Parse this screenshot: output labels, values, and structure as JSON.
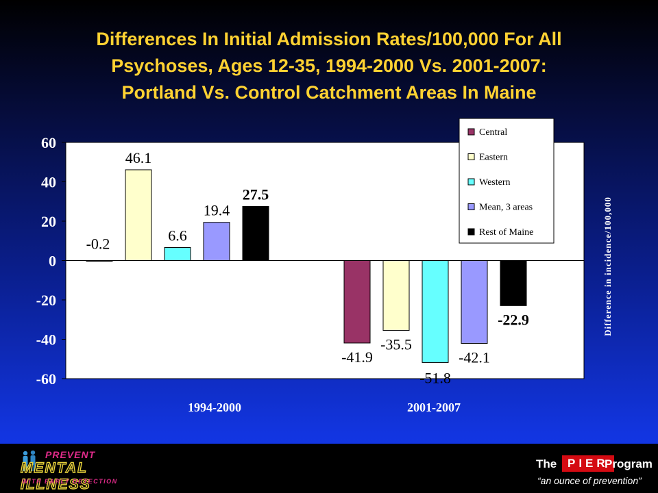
{
  "title": {
    "lines": [
      "Differences In Initial Admission Rates/100,000 For All",
      "Psychoses, Ages 12-35, 1994-2000 Vs. 2001-2007:",
      "Portland Vs. Control Catchment Areas In Maine"
    ]
  },
  "chart_data": {
    "type": "bar",
    "categories": [
      "1994-2000",
      "2001-2007"
    ],
    "series": [
      {
        "name": "Central",
        "values": [
          -0.2,
          -41.9
        ],
        "labels": [
          "-0.2",
          "-41.9"
        ],
        "color": "#993366",
        "bold": false
      },
      {
        "name": "Eastern",
        "values": [
          46.1,
          -35.5
        ],
        "labels": [
          "46.1",
          "-35.5"
        ],
        "color": "#ffffcc",
        "bold": false
      },
      {
        "name": "Western",
        "values": [
          6.6,
          -51.8
        ],
        "labels": [
          "6.6",
          "-51.8"
        ],
        "color": "#66ffff",
        "bold": false
      },
      {
        "name": "Mean, 3 areas",
        "values": [
          19.4,
          -42.1
        ],
        "labels": [
          "19.4",
          "-42.1"
        ],
        "color": "#9999ff",
        "bold": false
      },
      {
        "name": "Rest of Maine",
        "values": [
          27.5,
          -22.9
        ],
        "labels": [
          "27.5",
          "-22.9"
        ],
        "color": "#000000",
        "bold": true
      }
    ],
    "ylabel": "Difference in incidence/100,000",
    "ylim": [
      -60,
      60
    ],
    "yticks": [
      60,
      40,
      20,
      0,
      -20,
      -40,
      -60
    ],
    "ytick_labels": [
      "60",
      "40",
      "20",
      "0",
      "-20",
      "-40",
      "-60"
    ],
    "grid": false,
    "legend": "top-right",
    "colors": {
      "plot_bg": "#ffffff",
      "axis_text": "#ffffff",
      "label_text": "#000000"
    }
  },
  "footer": {
    "left_logo": {
      "line1": "PREVENT",
      "line2": "MENTAL ILLNESS",
      "line3": "WITH EARLY DETECTION"
    },
    "right_logo": {
      "the": "The",
      "brand": "PIER",
      "program": "Program",
      "tagline": "“an ounce of prevention”"
    }
  }
}
